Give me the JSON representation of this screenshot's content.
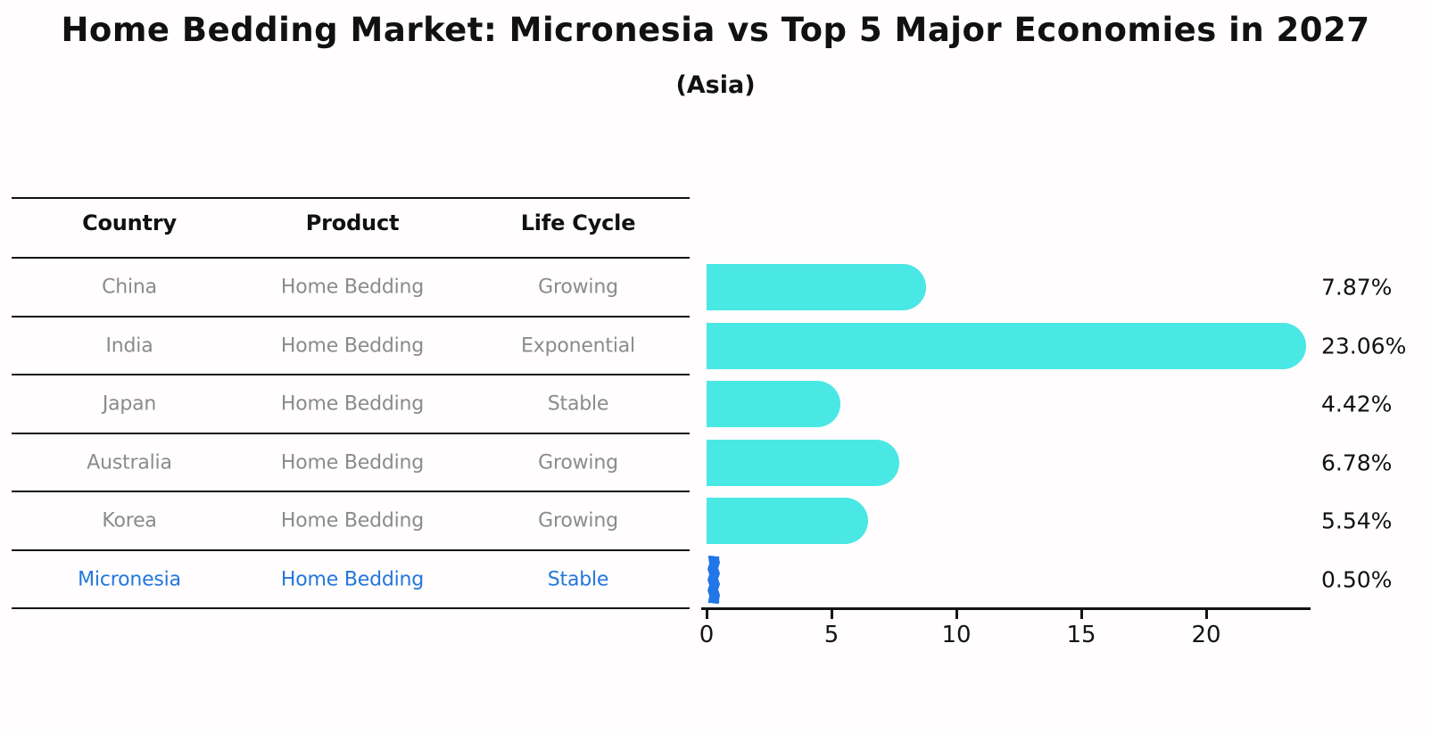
{
  "title": "Home Bedding Market: Micronesia vs Top 5 Major Economies in 2027",
  "subtitle": "(Asia)",
  "table": {
    "headers": [
      "Country",
      "Product",
      "Life Cycle"
    ],
    "rows": [
      {
        "country": "China",
        "product": "Home Bedding",
        "life_cycle": "Growing",
        "highlight": false
      },
      {
        "country": "India",
        "product": "Home Bedding",
        "life_cycle": "Exponential",
        "highlight": false
      },
      {
        "country": "Japan",
        "product": "Home Bedding",
        "life_cycle": "Stable",
        "highlight": false
      },
      {
        "country": "Australia",
        "product": "Home Bedding",
        "life_cycle": "Growing",
        "highlight": false
      },
      {
        "country": "Korea",
        "product": "Home Bedding",
        "life_cycle": "Growing",
        "highlight": false
      },
      {
        "country": "Micronesia",
        "product": "Home Bedding",
        "life_cycle": "Stable",
        "highlight": true
      }
    ]
  },
  "chart_data": {
    "type": "bar",
    "orientation": "horizontal",
    "categories": [
      "China",
      "India",
      "Japan",
      "Australia",
      "Korea",
      "Micronesia"
    ],
    "values": [
      7.87,
      23.06,
      4.42,
      6.78,
      5.54,
      0.5
    ],
    "value_labels": [
      "7.87%",
      "23.06%",
      "4.42%",
      "6.78%",
      "5.54%",
      "0.50%"
    ],
    "x_ticks": [
      0,
      5,
      10,
      15,
      20
    ],
    "xlim": [
      0,
      24
    ],
    "grid": false,
    "legend": "none",
    "xlabel": "",
    "ylabel": "",
    "bar_color": "#4ae8e4",
    "highlight_bar_color": "#2176e8",
    "highlight_text_color": "#2377dc",
    "highlight_index": 5
  }
}
